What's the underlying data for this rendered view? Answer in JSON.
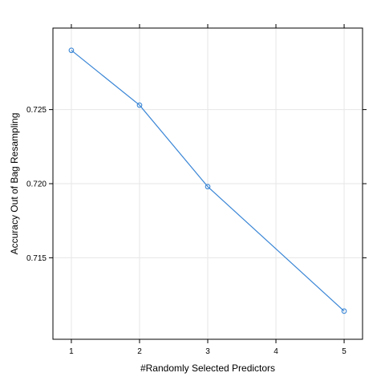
{
  "chart_data": {
    "type": "line",
    "xlabel": "#Randomly Selected Predictors",
    "ylabel": "Accuracy Out of Bag Resampling",
    "x": [
      1,
      2,
      3,
      4,
      5
    ],
    "series": [
      {
        "x": [
          1,
          2,
          3,
          5
        ],
        "values": [
          0.729,
          0.7253,
          0.7198,
          0.7114
        ],
        "color": "#3a86d6"
      }
    ],
    "xticks": [
      "1",
      "2",
      "3",
      "4",
      "5"
    ],
    "yticks": [
      "0.715",
      "0.720",
      "0.725"
    ],
    "xlim": [
      0.73,
      5.27
    ],
    "ylim": [
      0.7095,
      0.7305
    ],
    "grid": true,
    "grid_color": "#e6e6e6",
    "markers": "open-circle"
  }
}
